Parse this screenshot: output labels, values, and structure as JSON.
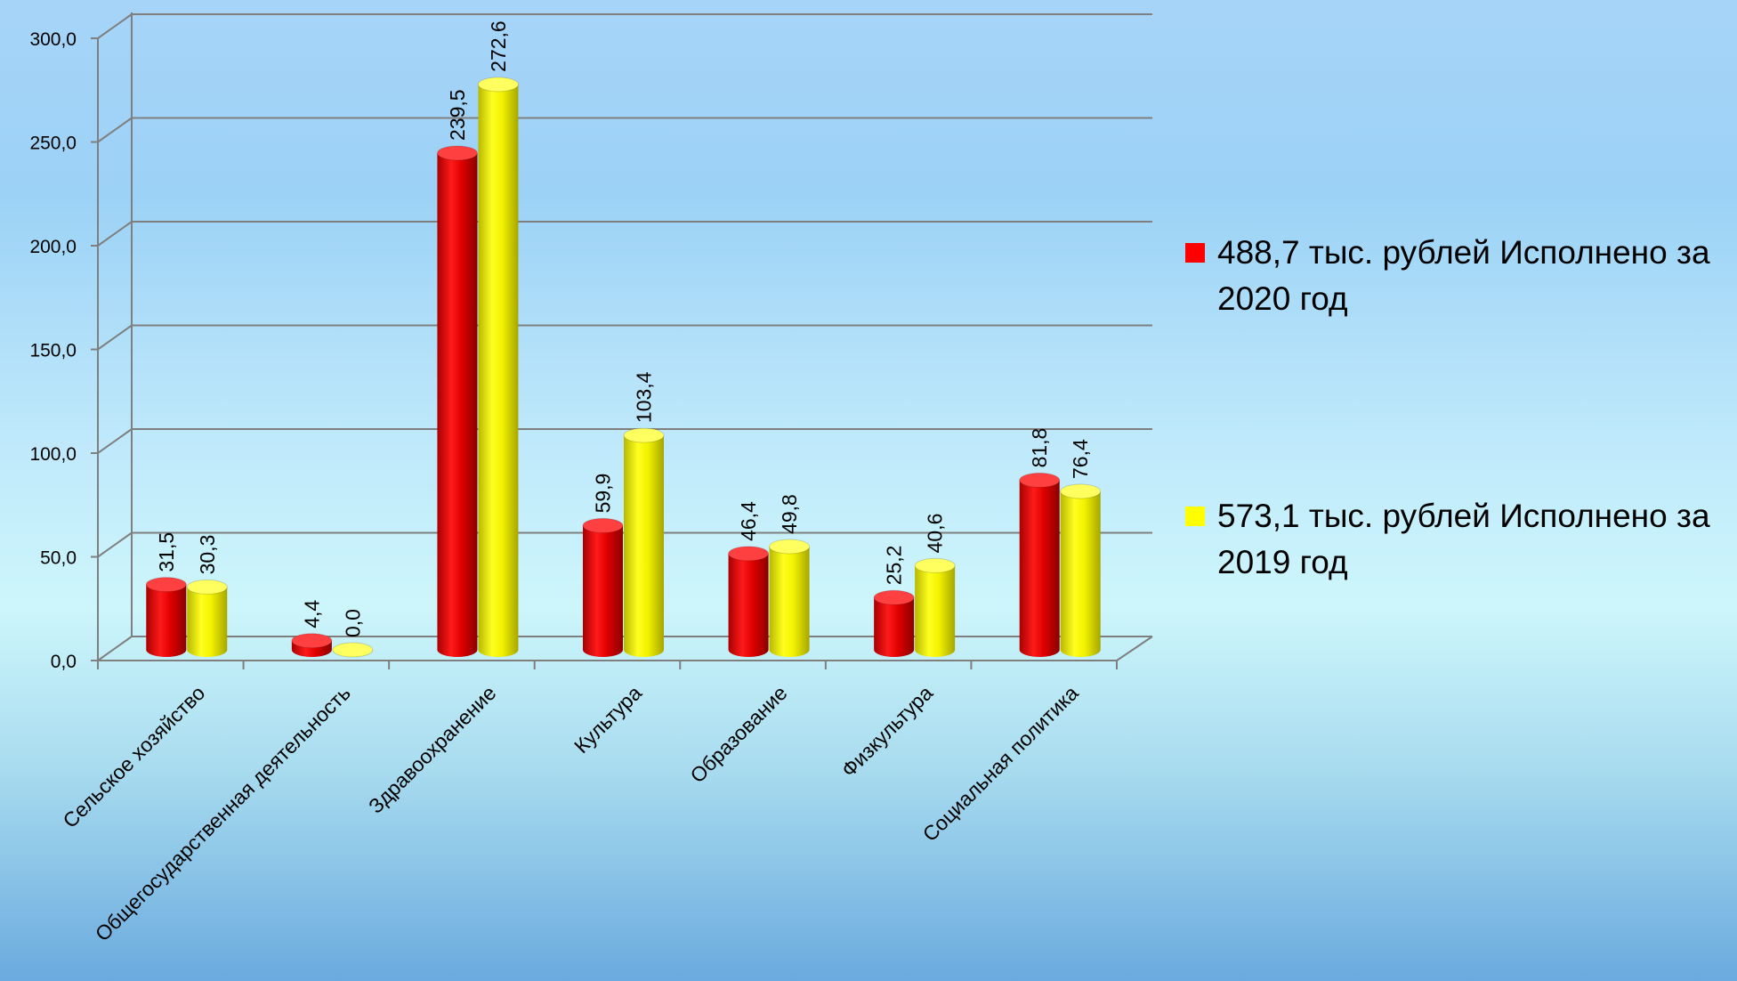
{
  "chart_data": {
    "type": "bar",
    "style": "3d-cylinder",
    "categories": [
      "Сельское хозяйство",
      "Общегосударственная деятельность",
      "Здравоохранение",
      "Культура",
      "Образование",
      "Физкультура",
      "Социальная политика"
    ],
    "series": [
      {
        "name": "488,7 тыс. рублей Исполнено за 2020 год",
        "color": "#ff0000",
        "values": [
          31.5,
          4.4,
          239.5,
          59.9,
          46.4,
          25.2,
          81.8
        ],
        "labels": [
          "31,5",
          "4,4",
          "239,5",
          "59,9",
          "46,4",
          "25,2",
          "81,8"
        ]
      },
      {
        "name": "573,1 тыс. рублей Исполнено за 2019 год",
        "color": "#ffff00",
        "values": [
          30.3,
          0.0,
          272.6,
          103.4,
          49.8,
          40.6,
          76.4
        ],
        "labels": [
          "30,3",
          "0,0",
          "272,6",
          "103,4",
          "49,8",
          "40,6",
          "76,4"
        ]
      }
    ],
    "ylim": [
      0,
      300
    ],
    "yticks": [
      "0,0",
      "50,0",
      "100,0",
      "150,0",
      "200,0",
      "250,0",
      "300,0"
    ],
    "grid": true,
    "legend": "right",
    "title": "",
    "xlabel": "",
    "ylabel": ""
  }
}
